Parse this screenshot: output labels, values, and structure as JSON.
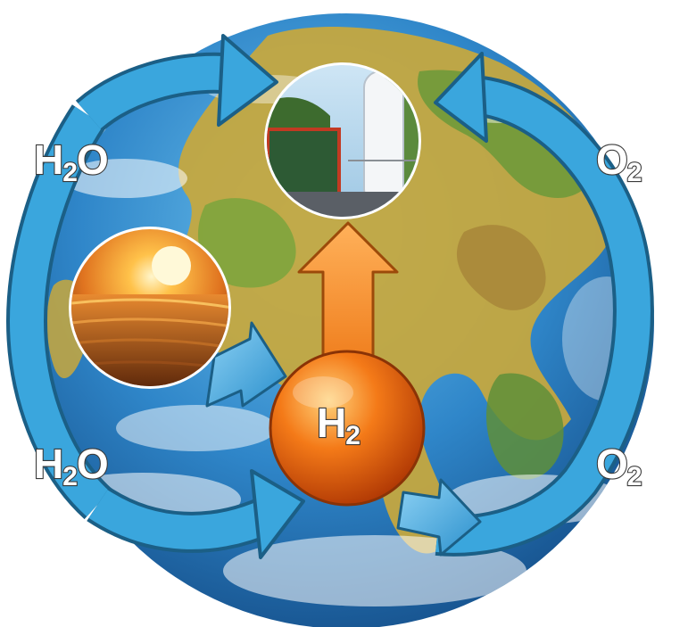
{
  "diagram": {
    "labels": {
      "water_top": {
        "main": "H",
        "sub": "2",
        "tail": "O"
      },
      "water_bottom": {
        "main": "H",
        "sub": "2",
        "tail": "O"
      },
      "oxygen_top": {
        "main": "O",
        "sub": "2"
      },
      "oxygen_bottom": {
        "main": "O",
        "sub": "2"
      },
      "hydrogen": {
        "main": "H",
        "sub": "2"
      }
    },
    "icons": {
      "earth": "earth-globe-icon",
      "sun": "sunset-sea-photo-icon",
      "plant": "hydrogen-plant-photo-icon",
      "hydrogen": "hydrogen-sphere-icon"
    },
    "colors": {
      "cycle_arrow": "#3aa6dd",
      "cycle_arrow_outline": "#1b5f86",
      "hydrogen_sphere": "#f36b10",
      "hydrogen_arrow": "#f39a2e",
      "ocean": "#2f86c9",
      "land": "#c9a83c"
    }
  }
}
